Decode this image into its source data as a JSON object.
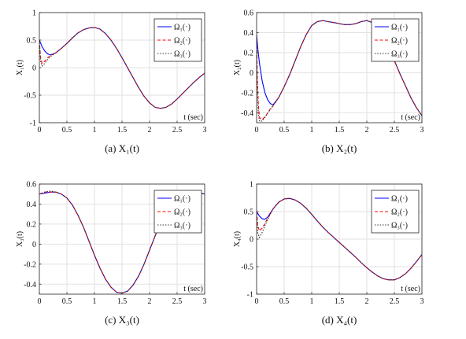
{
  "chart_data": [
    {
      "type": "line",
      "caption": "(a)  X₁(t)",
      "xlabel": "t (sec)",
      "ylabel": "X₁(t)",
      "xlim": [
        0,
        3
      ],
      "ylim": [
        -1,
        1
      ],
      "xticks": [
        0,
        0.5,
        1,
        1.5,
        2,
        2.5,
        3
      ],
      "yticks": [
        -1,
        -0.5,
        0,
        0.5,
        1
      ],
      "grid": true,
      "legend": "top-right",
      "series": [
        {
          "name": "Ω₁(·)",
          "color": "#0000ff",
          "dash": "solid",
          "x": [
            0,
            0.05,
            0.1,
            0.15,
            0.2,
            0.3,
            0.4,
            0.5,
            0.6,
            0.7,
            0.8,
            0.9,
            1.0,
            1.1,
            1.2,
            1.3,
            1.4,
            1.5,
            1.6,
            1.7,
            1.8,
            1.9,
            2.0,
            2.1,
            2.2,
            2.3,
            2.4,
            2.5,
            2.6,
            2.7,
            2.8,
            2.9,
            3.0
          ],
          "y": [
            0.5,
            0.38,
            0.3,
            0.25,
            0.23,
            0.27,
            0.35,
            0.44,
            0.54,
            0.63,
            0.69,
            0.72,
            0.73,
            0.7,
            0.62,
            0.5,
            0.35,
            0.18,
            0.0,
            -0.18,
            -0.36,
            -0.52,
            -0.64,
            -0.72,
            -0.74,
            -0.72,
            -0.66,
            -0.57,
            -0.47,
            -0.37,
            -0.27,
            -0.18,
            -0.1
          ]
        },
        {
          "name": "Ω₂(·)",
          "color": "#ff0000",
          "dash": "dashed",
          "x": [
            0,
            0.02,
            0.05,
            0.1,
            0.15,
            0.2,
            0.3,
            0.4,
            0.5,
            0.6,
            0.7,
            0.8,
            0.9,
            1.0,
            1.1,
            1.2,
            1.3,
            1.4,
            1.5,
            1.6,
            1.7,
            1.8,
            1.9,
            2.0,
            2.1,
            2.2,
            2.3,
            2.4,
            2.5,
            2.6,
            2.7,
            2.8,
            2.9,
            3.0
          ],
          "y": [
            0.5,
            0.2,
            0.08,
            0.12,
            0.18,
            0.22,
            0.27,
            0.35,
            0.44,
            0.54,
            0.63,
            0.69,
            0.72,
            0.73,
            0.7,
            0.62,
            0.5,
            0.35,
            0.18,
            0.0,
            -0.18,
            -0.36,
            -0.52,
            -0.64,
            -0.72,
            -0.74,
            -0.72,
            -0.66,
            -0.57,
            -0.47,
            -0.37,
            -0.27,
            -0.18,
            -0.1
          ]
        },
        {
          "name": "Ω₃(·)",
          "color": "#333333",
          "dash": "dotted",
          "x": [
            0,
            0.02,
            0.05,
            0.1,
            0.15,
            0.2,
            0.3,
            0.4,
            0.5,
            0.6,
            0.7,
            0.8,
            0.9,
            1.0,
            1.1,
            1.2,
            1.3,
            1.4,
            1.5,
            1.6,
            1.7,
            1.8,
            1.9,
            2.0,
            2.1,
            2.2,
            2.3,
            2.4,
            2.5,
            2.6,
            2.7,
            2.8,
            2.9,
            3.0
          ],
          "y": [
            0.5,
            0.12,
            0.03,
            0.08,
            0.15,
            0.2,
            0.27,
            0.35,
            0.44,
            0.54,
            0.63,
            0.69,
            0.72,
            0.73,
            0.7,
            0.62,
            0.5,
            0.35,
            0.18,
            0.0,
            -0.18,
            -0.36,
            -0.52,
            -0.64,
            -0.72,
            -0.74,
            -0.72,
            -0.66,
            -0.57,
            -0.47,
            -0.37,
            -0.27,
            -0.18,
            -0.1
          ]
        }
      ]
    },
    {
      "type": "line",
      "caption": "(b)  X₂(t)",
      "xlabel": "t (sec)",
      "ylabel": "X₂(t)",
      "xlim": [
        0,
        3
      ],
      "ylim": [
        -0.5,
        0.6
      ],
      "xticks": [
        0,
        0.5,
        1,
        1.5,
        2,
        2.5,
        3
      ],
      "yticks": [
        -0.4,
        -0.2,
        0,
        0.2,
        0.4,
        0.6
      ],
      "grid": true,
      "legend": "top-right",
      "series": [
        {
          "name": "Ω₁(·)",
          "color": "#0000ff",
          "dash": "solid",
          "x": [
            0,
            0.02,
            0.05,
            0.1,
            0.15,
            0.2,
            0.25,
            0.3,
            0.4,
            0.5,
            0.6,
            0.7,
            0.8,
            0.9,
            1.0,
            1.1,
            1.2,
            1.3,
            1.4,
            1.5,
            1.6,
            1.7,
            1.8,
            1.9,
            2.0,
            2.1,
            2.2,
            2.3,
            2.4,
            2.5,
            2.6,
            2.7,
            2.8,
            2.9,
            3.0
          ],
          "y": [
            0.38,
            0.25,
            0.1,
            -0.08,
            -0.2,
            -0.27,
            -0.31,
            -0.32,
            -0.25,
            -0.14,
            -0.02,
            0.12,
            0.26,
            0.38,
            0.47,
            0.51,
            0.52,
            0.51,
            0.5,
            0.49,
            0.48,
            0.48,
            0.49,
            0.51,
            0.52,
            0.5,
            0.44,
            0.35,
            0.24,
            0.12,
            -0.01,
            -0.13,
            -0.25,
            -0.35,
            -0.43
          ]
        },
        {
          "name": "Ω₂(·)",
          "color": "#ff0000",
          "dash": "dashed",
          "x": [
            0,
            0.01,
            0.03,
            0.05,
            0.08,
            0.12,
            0.18,
            0.25,
            0.3,
            0.4,
            0.5,
            0.6,
            0.7,
            0.8,
            0.9,
            1.0,
            1.1,
            1.2,
            1.3,
            1.4,
            1.5,
            1.6,
            1.7,
            1.8,
            1.9,
            2.0,
            2.1,
            2.2,
            2.3,
            2.4,
            2.5,
            2.6,
            2.7,
            2.8,
            2.9,
            3.0
          ],
          "y": [
            0.38,
            0.0,
            -0.3,
            -0.44,
            -0.47,
            -0.46,
            -0.42,
            -0.36,
            -0.33,
            -0.25,
            -0.14,
            -0.02,
            0.12,
            0.26,
            0.38,
            0.47,
            0.51,
            0.52,
            0.51,
            0.5,
            0.49,
            0.48,
            0.48,
            0.49,
            0.51,
            0.52,
            0.5,
            0.44,
            0.35,
            0.24,
            0.12,
            -0.01,
            -0.13,
            -0.25,
            -0.35,
            -0.43
          ]
        },
        {
          "name": "Ω₃(·)",
          "color": "#333333",
          "dash": "dotted",
          "x": [
            0,
            0.01,
            0.03,
            0.05,
            0.07,
            0.1,
            0.15,
            0.22,
            0.3,
            0.4,
            0.5,
            0.6,
            0.7,
            0.8,
            0.9,
            1.0,
            1.1,
            1.2,
            1.3,
            1.4,
            1.5,
            1.6,
            1.7,
            1.8,
            1.9,
            2.0,
            2.1,
            2.2,
            2.3,
            2.4,
            2.5,
            2.6,
            2.7,
            2.8,
            2.9,
            3.0
          ],
          "y": [
            0.38,
            -0.1,
            -0.4,
            -0.48,
            -0.49,
            -0.48,
            -0.45,
            -0.39,
            -0.33,
            -0.25,
            -0.14,
            -0.02,
            0.12,
            0.26,
            0.38,
            0.47,
            0.51,
            0.52,
            0.51,
            0.5,
            0.49,
            0.48,
            0.48,
            0.49,
            0.51,
            0.52,
            0.5,
            0.44,
            0.35,
            0.24,
            0.12,
            -0.01,
            -0.13,
            -0.25,
            -0.35,
            -0.43
          ]
        }
      ]
    },
    {
      "type": "line",
      "caption": "(c)  X₃(t)",
      "xlabel": "t (sec)",
      "ylabel": "X₃(t)",
      "xlim": [
        0,
        3
      ],
      "ylim": [
        -0.5,
        0.6
      ],
      "xticks": [
        0,
        0.5,
        1,
        1.5,
        2,
        2.5,
        3
      ],
      "yticks": [
        -0.4,
        -0.2,
        0,
        0.2,
        0.4,
        0.6
      ],
      "grid": true,
      "legend": "top-right",
      "series": [
        {
          "name": "Ω₁(·)",
          "color": "#0000ff",
          "dash": "solid",
          "x": [
            0,
            0.1,
            0.2,
            0.3,
            0.4,
            0.5,
            0.6,
            0.7,
            0.8,
            0.9,
            1.0,
            1.1,
            1.2,
            1.3,
            1.4,
            1.5,
            1.6,
            1.7,
            1.8,
            1.9,
            2.0,
            2.1,
            2.2,
            2.3,
            2.4,
            2.5,
            2.6,
            2.7,
            2.8,
            2.9,
            3.0
          ],
          "y": [
            0.5,
            0.51,
            0.52,
            0.52,
            0.5,
            0.46,
            0.39,
            0.29,
            0.17,
            0.03,
            -0.11,
            -0.24,
            -0.35,
            -0.43,
            -0.48,
            -0.49,
            -0.47,
            -0.41,
            -0.32,
            -0.2,
            -0.06,
            0.08,
            0.22,
            0.34,
            0.43,
            0.49,
            0.52,
            0.52,
            0.52,
            0.51,
            0.5
          ]
        },
        {
          "name": "Ω₂(·)",
          "color": "#ff0000",
          "dash": "dashed",
          "x": [
            0,
            0.1,
            0.2,
            0.3,
            0.4,
            0.5,
            0.6,
            0.7,
            0.8,
            0.9,
            1.0,
            1.1,
            1.2,
            1.3,
            1.4,
            1.5,
            1.6,
            1.7,
            1.8,
            1.9,
            2.0,
            2.1,
            2.2,
            2.3,
            2.4,
            2.5,
            2.6,
            2.7,
            2.8,
            2.9,
            3.0
          ],
          "y": [
            0.5,
            0.52,
            0.52,
            0.52,
            0.5,
            0.46,
            0.39,
            0.29,
            0.17,
            0.03,
            -0.11,
            -0.24,
            -0.35,
            -0.43,
            -0.48,
            -0.49,
            -0.47,
            -0.41,
            -0.32,
            -0.2,
            -0.06,
            0.08,
            0.22,
            0.34,
            0.43,
            0.49,
            0.52,
            0.52,
            0.52,
            0.51,
            0.5
          ]
        },
        {
          "name": "Ω₃(·)",
          "color": "#333333",
          "dash": "dotted",
          "x": [
            0,
            0.1,
            0.2,
            0.3,
            0.4,
            0.5,
            0.6,
            0.7,
            0.8,
            0.9,
            1.0,
            1.1,
            1.2,
            1.3,
            1.4,
            1.5,
            1.6,
            1.7,
            1.8,
            1.9,
            2.0,
            2.1,
            2.2,
            2.3,
            2.4,
            2.5,
            2.6,
            2.7,
            2.8,
            2.9,
            3.0
          ],
          "y": [
            0.5,
            0.52,
            0.53,
            0.52,
            0.5,
            0.46,
            0.39,
            0.29,
            0.17,
            0.03,
            -0.11,
            -0.24,
            -0.35,
            -0.43,
            -0.48,
            -0.49,
            -0.47,
            -0.41,
            -0.32,
            -0.2,
            -0.06,
            0.08,
            0.22,
            0.34,
            0.43,
            0.49,
            0.52,
            0.52,
            0.52,
            0.51,
            0.5
          ]
        }
      ]
    },
    {
      "type": "line",
      "caption": "(d)  X₄(t)",
      "xlabel": "t (sec)",
      "ylabel": "X₄(t)",
      "xlim": [
        0,
        3
      ],
      "ylim": [
        -1,
        1
      ],
      "xticks": [
        0,
        0.5,
        1,
        1.5,
        2,
        2.5,
        3
      ],
      "yticks": [
        -1,
        -0.5,
        0,
        0.5,
        1
      ],
      "grid": true,
      "legend": "top-right",
      "series": [
        {
          "name": "Ω₁(·)",
          "color": "#0000ff",
          "dash": "solid",
          "x": [
            0,
            0.05,
            0.1,
            0.15,
            0.2,
            0.3,
            0.4,
            0.5,
            0.6,
            0.7,
            0.8,
            0.9,
            1.0,
            1.1,
            1.2,
            1.3,
            1.4,
            1.5,
            1.6,
            1.7,
            1.8,
            1.9,
            2.0,
            2.1,
            2.2,
            2.3,
            2.4,
            2.5,
            2.6,
            2.7,
            2.8,
            2.9,
            3.0
          ],
          "y": [
            0.5,
            0.42,
            0.37,
            0.36,
            0.4,
            0.55,
            0.67,
            0.73,
            0.74,
            0.71,
            0.65,
            0.56,
            0.45,
            0.33,
            0.22,
            0.12,
            0.03,
            -0.06,
            -0.15,
            -0.24,
            -0.33,
            -0.43,
            -0.52,
            -0.6,
            -0.67,
            -0.72,
            -0.74,
            -0.74,
            -0.7,
            -0.63,
            -0.53,
            -0.41,
            -0.28
          ]
        },
        {
          "name": "Ω₂(·)",
          "color": "#ff0000",
          "dash": "dashed",
          "x": [
            0,
            0.02,
            0.05,
            0.1,
            0.15,
            0.2,
            0.3,
            0.4,
            0.5,
            0.6,
            0.7,
            0.8,
            0.9,
            1.0,
            1.1,
            1.2,
            1.3,
            1.4,
            1.5,
            1.6,
            1.7,
            1.8,
            1.9,
            2.0,
            2.1,
            2.2,
            2.3,
            2.4,
            2.5,
            2.6,
            2.7,
            2.8,
            2.9,
            3.0
          ],
          "y": [
            0.5,
            0.25,
            0.15,
            0.2,
            0.28,
            0.38,
            0.55,
            0.67,
            0.73,
            0.74,
            0.71,
            0.65,
            0.56,
            0.45,
            0.33,
            0.22,
            0.12,
            0.03,
            -0.06,
            -0.15,
            -0.24,
            -0.33,
            -0.43,
            -0.52,
            -0.6,
            -0.67,
            -0.72,
            -0.74,
            -0.74,
            -0.7,
            -0.63,
            -0.53,
            -0.41,
            -0.28
          ]
        },
        {
          "name": "Ω₃(·)",
          "color": "#333333",
          "dash": "dotted",
          "x": [
            0,
            0.02,
            0.05,
            0.1,
            0.15,
            0.2,
            0.3,
            0.4,
            0.5,
            0.6,
            0.7,
            0.8,
            0.9,
            1.0,
            1.1,
            1.2,
            1.3,
            1.4,
            1.5,
            1.6,
            1.7,
            1.8,
            1.9,
            2.0,
            2.1,
            2.2,
            2.3,
            2.4,
            2.5,
            2.6,
            2.7,
            2.8,
            2.9,
            3.0
          ],
          "y": [
            0.5,
            0.12,
            0.03,
            0.12,
            0.24,
            0.36,
            0.55,
            0.67,
            0.73,
            0.74,
            0.71,
            0.65,
            0.56,
            0.45,
            0.33,
            0.22,
            0.12,
            0.03,
            -0.06,
            -0.15,
            -0.24,
            -0.33,
            -0.43,
            -0.52,
            -0.6,
            -0.67,
            -0.72,
            -0.74,
            -0.74,
            -0.7,
            -0.63,
            -0.53,
            -0.41,
            -0.28
          ]
        }
      ]
    }
  ]
}
